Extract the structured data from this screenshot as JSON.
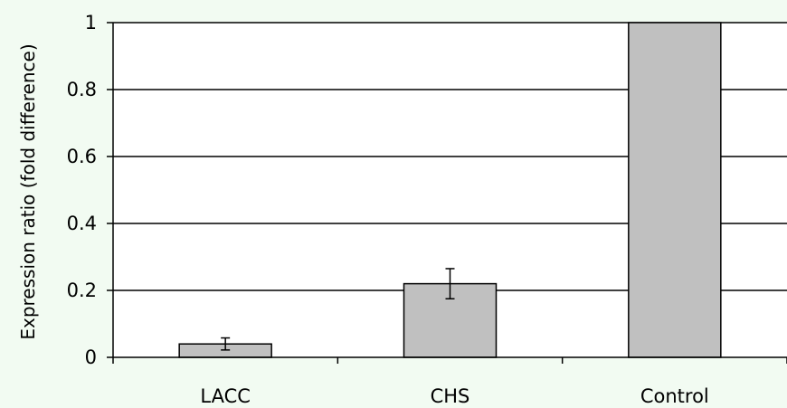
{
  "chart_data": {
    "type": "bar",
    "categories": [
      "LACC",
      "CHS",
      "Control"
    ],
    "values": [
      0.04,
      0.22,
      1.0
    ],
    "errors": [
      0.018,
      0.045,
      0.0
    ],
    "ylabel": "Expression ratio (fold difference)",
    "xlabel": "",
    "title": "",
    "ylim": [
      0,
      1
    ],
    "yticks": [
      0,
      0.2,
      0.4,
      0.6,
      0.8,
      1
    ],
    "ytick_labels": [
      "0",
      "0.2",
      "0.4",
      "0.6",
      "0.8",
      "1"
    ],
    "grid": true,
    "legend": "none",
    "bar_color": "#c0c0c0",
    "plot_background": "#ffffff",
    "page_background": "#f2fbf2"
  }
}
